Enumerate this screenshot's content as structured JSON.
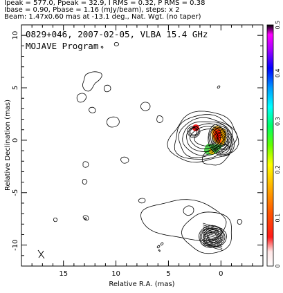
{
  "header": {
    "line1": "Ipeak = 577.0, Ppeak = 32.9, I RMS = 0.32, P RMS = 0.38",
    "line2": "Ibase = 0.90, Pbase = 1.16 (mJy/beam), steps: x 2",
    "line3": "Beam: 1.47x0.60 mas at -13.1 deg., Nat. Wgt. (no taper)"
  },
  "chart_data": {
    "type": "contour",
    "annotation": [
      "0829+046, 2007-02-05, VLBA 15.4 GHz",
      "MOJAVE Program"
    ],
    "xlabel": "Relative R.A. (mas)",
    "ylabel": "Relative Declination (mas)",
    "xlim": [
      19,
      -4
    ],
    "ylim": [
      -12,
      11
    ],
    "xticks": [
      15,
      10,
      5,
      0
    ],
    "yticks": [
      10,
      5,
      0,
      -5,
      -10
    ],
    "colorbar": {
      "min": 0,
      "max": 0.5,
      "ticks": [
        0,
        0.1,
        0.2,
        0.3,
        0.4,
        0.5
      ]
    },
    "upper_panel_core": {
      "x": 0,
      "y": 0,
      "peak_Jy_per_beam": 0.577
    },
    "upper_panel_knot": {
      "x": 2.6,
      "y": 0.8
    },
    "lower_panel_core": {
      "x": 0.8,
      "y": -9.2
    },
    "beam": {
      "x": 17.0,
      "y": -10.7,
      "major": 1.47,
      "minor": 0.6,
      "pa_deg": -13.1
    },
    "contour_base_mJy": 0.9,
    "contour_step": 2
  }
}
